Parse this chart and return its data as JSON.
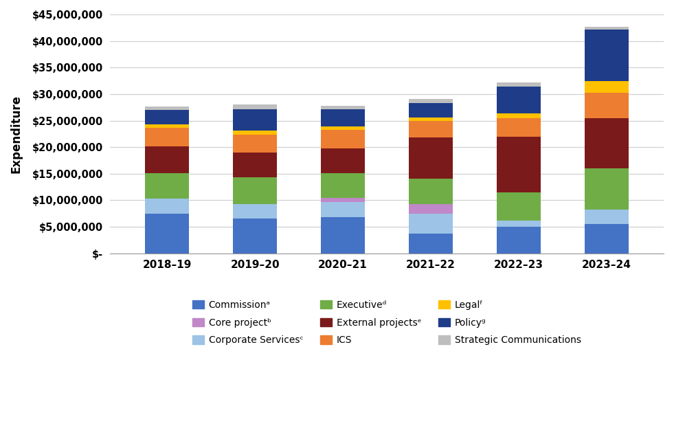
{
  "years": [
    "2018–19",
    "2019–20",
    "2020–21",
    "2021–22",
    "2022–23",
    "2023–24"
  ],
  "categories": [
    "Commissionᵃ",
    "Corporate Servicesᶜ",
    "Core projectᵇ",
    "Executiveᵈ",
    "External projectsᵉ",
    "ICS",
    "Legalᶠ",
    "Policyᵍ",
    "Strategic Communications"
  ],
  "colors": [
    "#4472C4",
    "#9DC3E6",
    "#C088C8",
    "#70AD47",
    "#7B1A1A",
    "#ED7D31",
    "#FFC000",
    "#1F3C88",
    "#BEBEBE"
  ],
  "values": {
    "Commissionᵃ": [
      7500000,
      6500000,
      6800000,
      3700000,
      5000000,
      5500000
    ],
    "Corporate Servicesᶜ": [
      2800000,
      2800000,
      2900000,
      3800000,
      1200000,
      2700000
    ],
    "Core projectᵇ": [
      0,
      0,
      700000,
      1800000,
      0,
      0
    ],
    "Executiveᵈ": [
      4800000,
      5000000,
      4700000,
      4800000,
      5300000,
      7800000
    ],
    "External projectsᵉ": [
      5000000,
      4700000,
      4700000,
      7700000,
      10500000,
      9500000
    ],
    "ICS": [
      3500000,
      3300000,
      3400000,
      3100000,
      3400000,
      4700000
    ],
    "Legalᶠ": [
      700000,
      800000,
      700000,
      700000,
      1000000,
      2200000
    ],
    "Policyᵍ": [
      2700000,
      4000000,
      3200000,
      2700000,
      5000000,
      9800000
    ],
    "Strategic Communications": [
      700000,
      1000000,
      700000,
      800000,
      800000,
      500000
    ]
  },
  "legend_order": [
    "Commissionᵃ",
    "Core projectᵇ",
    "Corporate Servicesᶜ",
    "Executiveᵈ",
    "External projectsᵉ",
    "ICS",
    "Legalᶠ",
    "Policyᵍ",
    "Strategic Communications"
  ],
  "legend_colors": [
    "#4472C4",
    "#C088C8",
    "#9DC3E6",
    "#70AD47",
    "#7B1A1A",
    "#ED7D31",
    "#FFC000",
    "#1F3C88",
    "#BEBEBE"
  ],
  "ylabel": "Expenditure",
  "ylim": [
    0,
    45000000
  ],
  "yticks": [
    0,
    5000000,
    10000000,
    15000000,
    20000000,
    25000000,
    30000000,
    35000000,
    40000000,
    45000000
  ],
  "ytick_labels": [
    "$-",
    "$5,000,000",
    "$10,000,000",
    "$15,000,000",
    "$20,000,000",
    "$25,000,000",
    "$30,000,000",
    "$35,000,000",
    "$40,000,000",
    "$45,000,000"
  ],
  "background_color": "#FFFFFF",
  "grid_color": "#D0D0D0",
  "bar_width": 0.5
}
